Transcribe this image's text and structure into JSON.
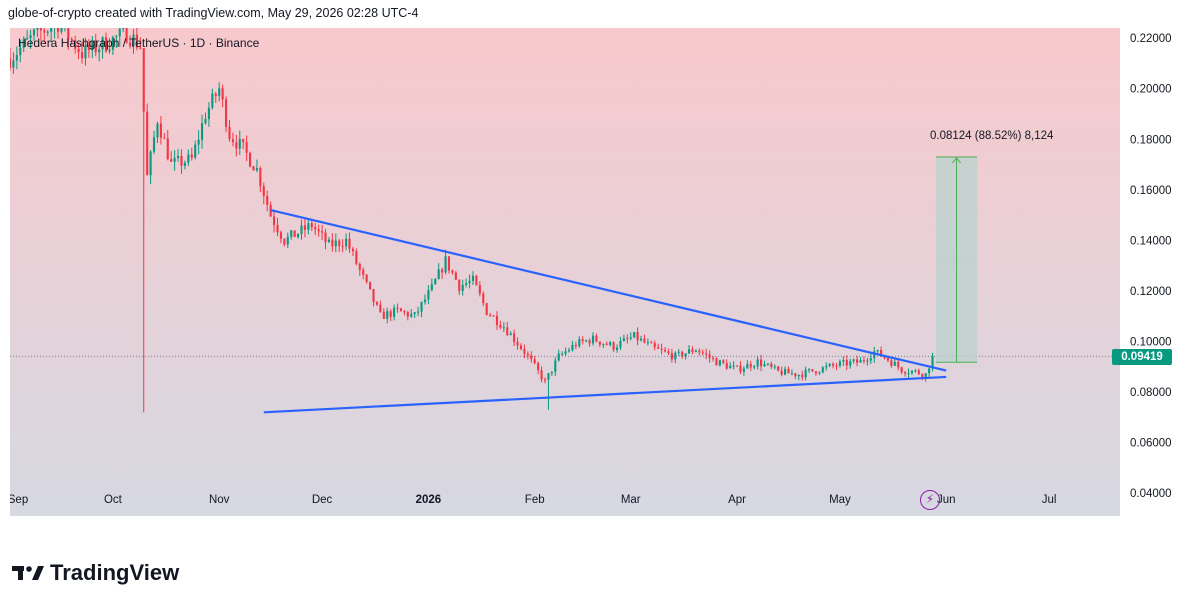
{
  "header": {
    "credit": "globe-of-crypto created with TradingView.com, May 29, 2026 02:28 UTC-4"
  },
  "legend": {
    "symbol": "Hedera Hashgraph / TetherUS · 1D · Binance"
  },
  "brand": {
    "name": "TradingView",
    "logo_icon": "tradingview-logo-icon"
  },
  "price_label": "0.09419",
  "measure": {
    "label": "0.08124 (88.52%) 8,124"
  },
  "icons": {
    "flash": "lightning-icon"
  },
  "colors": {
    "bull": "#089981",
    "bear": "#f23645",
    "trendline": "#2962ff",
    "bg_top": "#f8c9cc",
    "bg_bottom": "#d6d8e2",
    "measure_fill": "#b9d2cf",
    "measure_line": "#4caf50"
  },
  "chart_data": {
    "type": "candlestick",
    "x_tick_labels": [
      "Sep",
      "Oct",
      "Nov",
      "Dec",
      "2026",
      "Feb",
      "Mar",
      "Apr",
      "May",
      "Jun",
      "Jul"
    ],
    "x_tick_dates": [
      "2025-09-01",
      "2025-10-01",
      "2025-11-01",
      "2025-12-01",
      "2026-01-01",
      "2026-02-01",
      "2026-03-01",
      "2026-04-01",
      "2026-05-01",
      "2026-06-01",
      "2026-07-01"
    ],
    "y_tick_labels": [
      "0.22000",
      "0.20000",
      "0.18000",
      "0.16000",
      "0.14000",
      "0.12000",
      "0.10000",
      "0.08000",
      "0.06000",
      "0.04000"
    ],
    "y_ticks": [
      0.22,
      0.2,
      0.18,
      0.16,
      0.14,
      0.12,
      0.1,
      0.08,
      0.06,
      0.04
    ],
    "ylim": [
      0.031,
      0.224
    ],
    "last_price": 0.09419,
    "price_path": [
      [
        "2025-09-01",
        0.212
      ],
      [
        "2025-09-08",
        0.221
      ],
      [
        "2025-09-15",
        0.226
      ],
      [
        "2025-09-22",
        0.214
      ],
      [
        "2025-09-29",
        0.218
      ],
      [
        "2025-10-05",
        0.222
      ],
      [
        "2025-10-09",
        0.217
      ],
      [
        "2025-10-11",
        0.165
      ],
      [
        "2025-10-14",
        0.188
      ],
      [
        "2025-10-18",
        0.17
      ],
      [
        "2025-10-24",
        0.172
      ],
      [
        "2025-10-28",
        0.19
      ],
      [
        "2025-11-01",
        0.2
      ],
      [
        "2025-11-04",
        0.182
      ],
      [
        "2025-11-08",
        0.176
      ],
      [
        "2025-11-12",
        0.168
      ],
      [
        "2025-11-16",
        0.15
      ],
      [
        "2025-11-20",
        0.14
      ],
      [
        "2025-11-24",
        0.143
      ],
      [
        "2025-11-28",
        0.146
      ],
      [
        "2025-12-03",
        0.138
      ],
      [
        "2025-12-08",
        0.14
      ],
      [
        "2025-12-13",
        0.125
      ],
      [
        "2025-12-18",
        0.11
      ],
      [
        "2025-12-23",
        0.112
      ],
      [
        "2025-12-28",
        0.11
      ],
      [
        "2026-01-02",
        0.121
      ],
      [
        "2026-01-06",
        0.132
      ],
      [
        "2026-01-10",
        0.122
      ],
      [
        "2026-01-14",
        0.124
      ],
      [
        "2026-01-18",
        0.112
      ],
      [
        "2026-01-23",
        0.106
      ],
      [
        "2026-01-29",
        0.096
      ],
      [
        "2026-02-04",
        0.084
      ],
      [
        "2026-02-08",
        0.094
      ],
      [
        "2026-02-13",
        0.099
      ],
      [
        "2026-02-18",
        0.101
      ],
      [
        "2026-02-24",
        0.098
      ],
      [
        "2026-03-02",
        0.102
      ],
      [
        "2026-03-08",
        0.097
      ],
      [
        "2026-03-14",
        0.094
      ],
      [
        "2026-03-20",
        0.097
      ],
      [
        "2026-03-26",
        0.092
      ],
      [
        "2026-04-01",
        0.089
      ],
      [
        "2026-04-07",
        0.092
      ],
      [
        "2026-04-13",
        0.088
      ],
      [
        "2026-04-19",
        0.087
      ],
      [
        "2026-04-25",
        0.089
      ],
      [
        "2026-05-01",
        0.091
      ],
      [
        "2026-05-07",
        0.092
      ],
      [
        "2026-05-11",
        0.096
      ],
      [
        "2026-05-15",
        0.093
      ],
      [
        "2026-05-19",
        0.089
      ],
      [
        "2026-05-23",
        0.088
      ],
      [
        "2026-05-26",
        0.087
      ],
      [
        "2026-05-28",
        0.09419
      ]
    ],
    "trendlines": [
      {
        "points": [
          [
            "2025-11-16",
            0.152
          ],
          [
            "2026-06-01",
            0.0885
          ]
        ]
      },
      {
        "points": [
          [
            "2025-11-14",
            0.072
          ],
          [
            "2026-06-01",
            0.086
          ]
        ]
      }
    ],
    "measure_box": {
      "from_date": "2026-05-29",
      "to_date": "2026-06-10",
      "from_price": 0.0918,
      "to_price": 0.173
    },
    "x_range": [
      "2025-09-01",
      "2026-07-10"
    ]
  }
}
